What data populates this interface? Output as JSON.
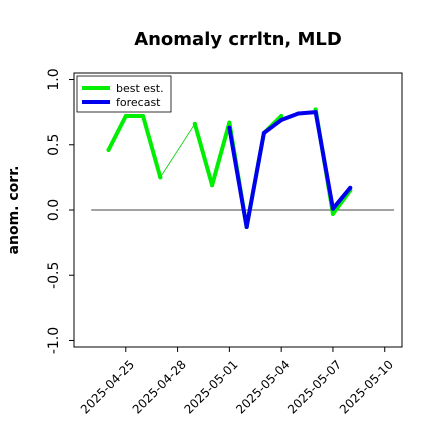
{
  "chart_data": {
    "type": "line",
    "title": "Anomaly crrltn, MLD",
    "xlabel": "",
    "ylabel": "anom. corr.",
    "xlim": [
      "2025-04-22",
      "2025-05-11"
    ],
    "ylim": [
      -1.05,
      1.05
    ],
    "yticks": [
      -1.0,
      -0.5,
      0.0,
      0.5,
      1.0
    ],
    "ytick_labels": [
      "-1.0",
      "-0.5",
      "0.0",
      "0.5",
      "1.0"
    ],
    "xticks": [
      "2025-04-25",
      "2025-04-28",
      "2025-05-01",
      "2025-05-04",
      "2025-05-07",
      "2025-05-10"
    ],
    "xtick_labels": [
      "2025-04-25",
      "2025-04-28",
      "2025-05-01",
      "2025-05-04",
      "2025-05-07",
      "2025-05-10"
    ],
    "xtick_colors": [
      "#000000",
      "#000000",
      "#228b22",
      "#000000",
      "#000000",
      "#000000"
    ],
    "hline": 0.0,
    "grid": false,
    "legend_position": "top-left",
    "legend": [
      "best est.",
      "forecast"
    ],
    "series": [
      {
        "name": "best est.",
        "color": "#00ee00",
        "x": [
          "2025-04-24",
          "2025-04-25",
          "2025-04-26",
          "2025-04-27",
          "2025-04-29",
          "2025-04-30",
          "2025-05-01",
          "2025-05-02",
          "2025-05-03",
          "2025-05-04",
          "2025-05-06",
          "2025-05-07",
          "2025-05-08"
        ],
        "y": [
          0.46,
          0.72,
          0.72,
          0.25,
          0.66,
          0.19,
          0.67,
          -0.13,
          0.59,
          0.72,
          0.77,
          -0.03,
          0.15
        ]
      },
      {
        "name": "forecast",
        "color": "#0000ee",
        "x": [
          "2025-05-01",
          "2025-05-02",
          "2025-05-03",
          "2025-05-04",
          "2025-05-05",
          "2025-05-06",
          "2025-05-07",
          "2025-05-08"
        ],
        "y": [
          0.63,
          -0.13,
          0.59,
          0.69,
          0.74,
          0.75,
          0.01,
          0.17
        ]
      }
    ],
    "bridge": {
      "x": [
        "2025-04-27",
        "2025-04-29"
      ],
      "y": [
        0.25,
        0.66
      ],
      "color": "#00cc00"
    }
  }
}
